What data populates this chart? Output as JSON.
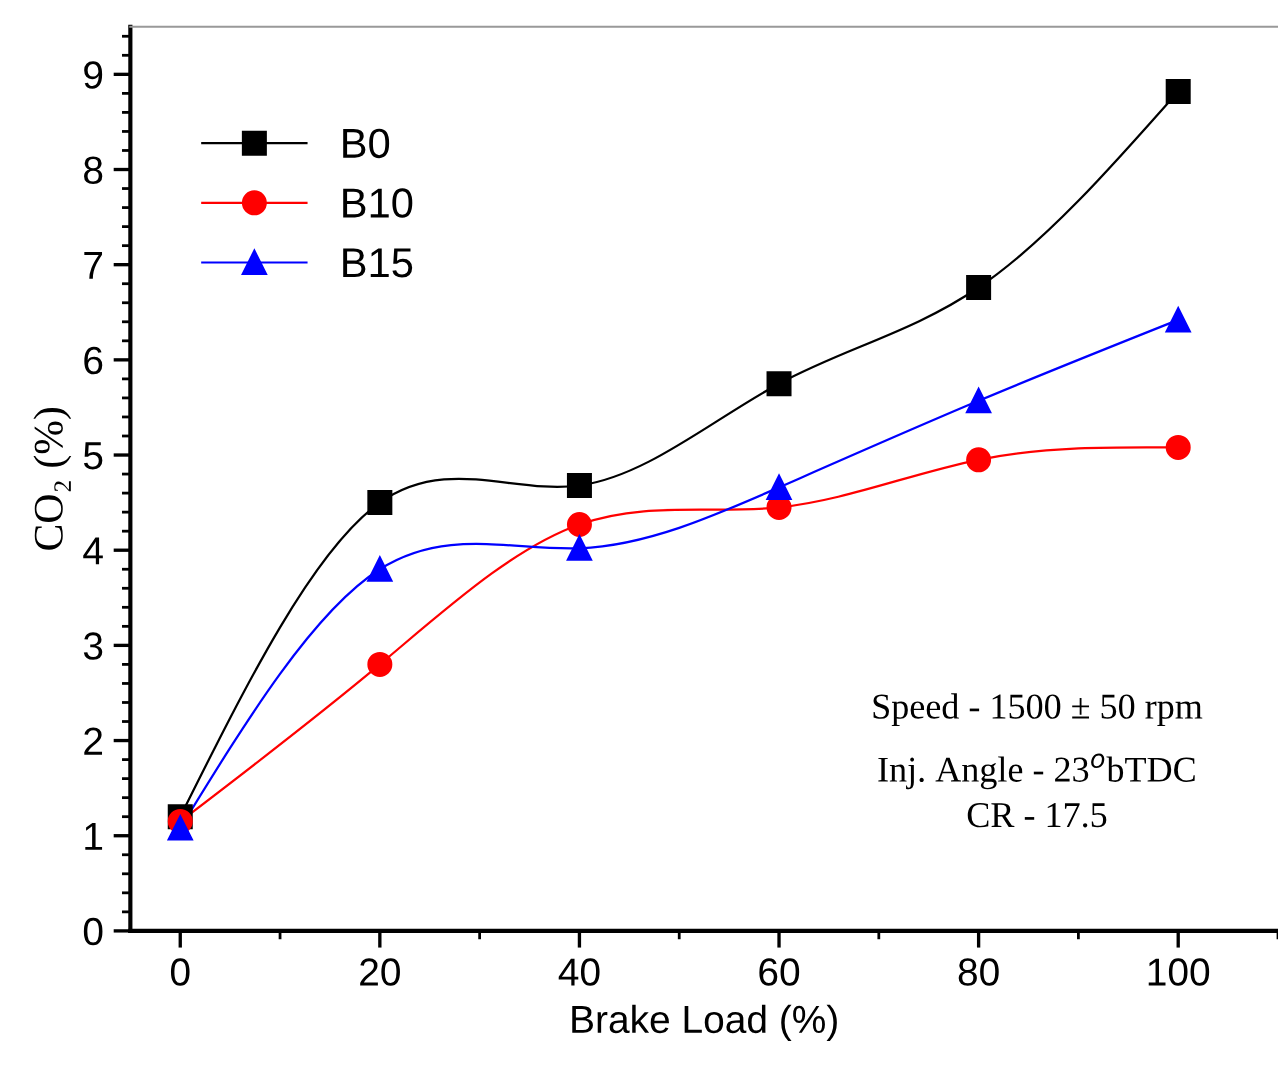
{
  "chart_data": {
    "type": "line",
    "xlabel": "Brake Load (%)",
    "ylabel": "CO₂ (%)",
    "x": [
      0,
      20,
      40,
      60,
      80,
      100
    ],
    "series": [
      {
        "name": "B0",
        "color": "#000000",
        "marker": "square",
        "values": [
          1.2,
          4.5,
          4.68,
          5.75,
          6.76,
          8.82
        ]
      },
      {
        "name": "B10",
        "color": "#ff0000",
        "marker": "circle",
        "values": [
          1.15,
          2.8,
          4.27,
          4.45,
          4.95,
          5.08
        ]
      },
      {
        "name": "B15",
        "color": "#0000ff",
        "marker": "triangle",
        "values": [
          1.08,
          3.8,
          4.02,
          4.66,
          5.57,
          6.42
        ]
      }
    ],
    "xlim": [
      -5,
      110
    ],
    "xticks": [
      0,
      20,
      40,
      60,
      80,
      100
    ],
    "ylim": [
      0,
      9.5
    ],
    "yticks": [
      0,
      1,
      2,
      3,
      4,
      5,
      6,
      7,
      8,
      9
    ],
    "grid": false,
    "legend": "top left",
    "line_style": "solid",
    "annotations": [
      "Speed - 1500 ± 50 rpm",
      "Inj. Angle - 23$^{o}$bTDC",
      "CR - 17.5"
    ]
  }
}
